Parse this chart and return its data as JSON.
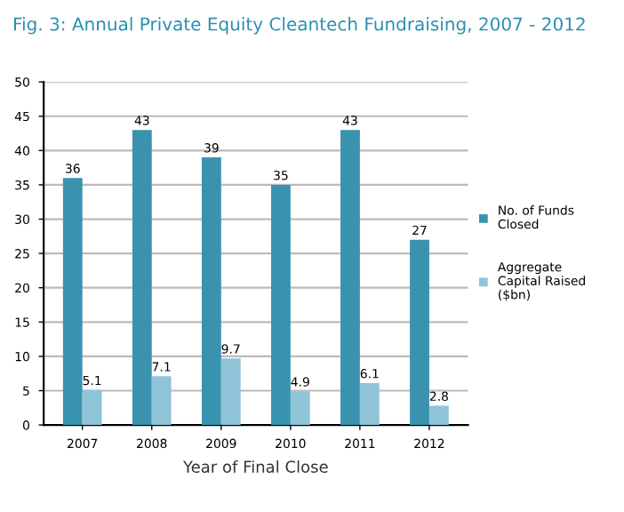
{
  "chart_data": {
    "type": "bar",
    "title": "Fig. 3: Annual Private Equity Cleantech Fundraising, 2007 - 2012",
    "xlabel": "Year of Final Close",
    "categories": [
      "2007",
      "2008",
      "2009",
      "2010",
      "2011",
      "2012"
    ],
    "series": [
      {
        "name": "No. of Funds Closed",
        "color": "#3a93ae",
        "values": [
          36,
          43,
          39,
          35,
          43,
          27
        ]
      },
      {
        "name": "Aggregate Capital Raised ($bn)",
        "color": "#8fc3d8",
        "values": [
          5.1,
          7.1,
          9.7,
          4.9,
          6.1,
          2.8
        ]
      }
    ],
    "ylim": [
      0,
      50
    ],
    "yticks": [
      0,
      5,
      10,
      15,
      20,
      25,
      30,
      35,
      40,
      45,
      50
    ],
    "grid": "y",
    "legend": "right",
    "data_labels": true
  }
}
